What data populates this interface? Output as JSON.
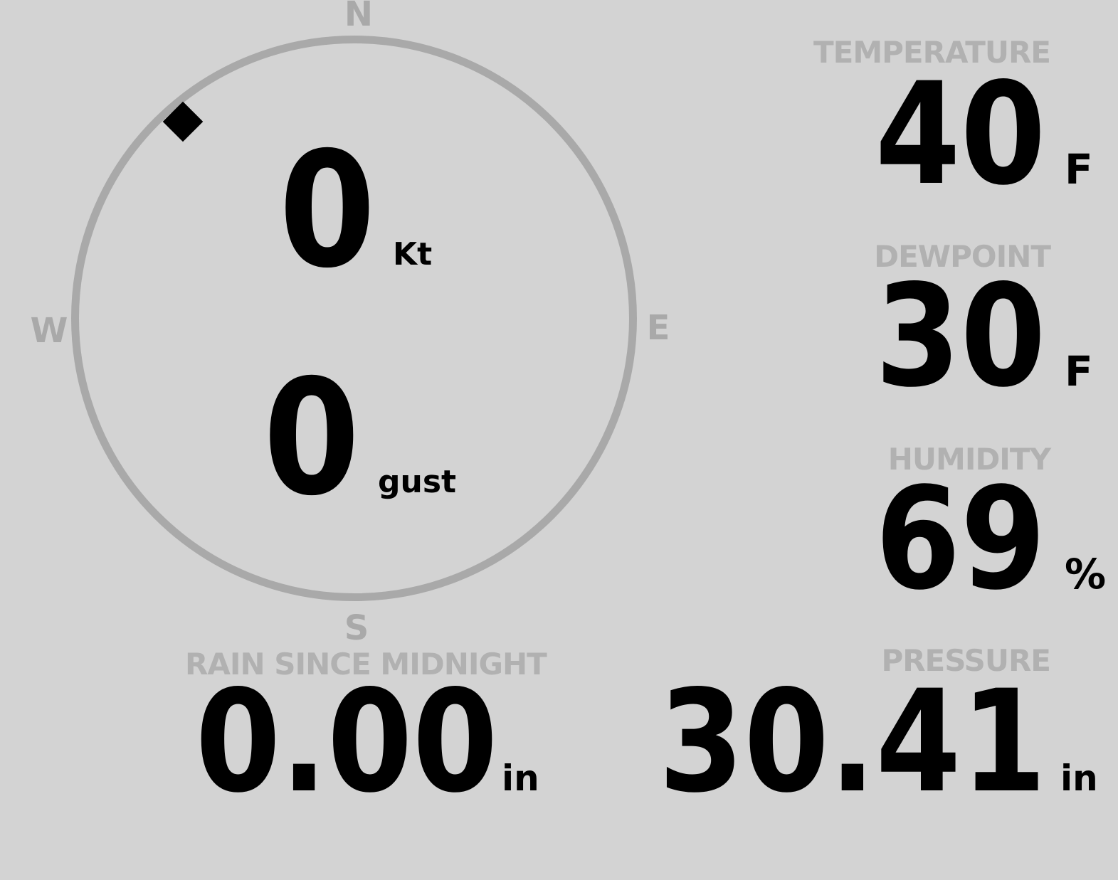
{
  "colors": {
    "background": "#d3d3d3",
    "dial": "#a9a9a9",
    "label": "#b1b1b1",
    "value": "#000000",
    "marker": "#000000"
  },
  "wind": {
    "speed": "0",
    "speed_unit": "Kt",
    "gust": "0",
    "gust_unit": "gust",
    "direction_deg": 319,
    "cardinals": {
      "n": "N",
      "e": "E",
      "s": "S",
      "w": "W"
    }
  },
  "metrics": {
    "temperature": {
      "label": "TEMPERATURE",
      "value": "40",
      "unit": "F"
    },
    "dewpoint": {
      "label": "DEWPOINT",
      "value": "30",
      "unit": "F"
    },
    "humidity": {
      "label": "HUMIDITY",
      "value": "69",
      "unit": "%"
    },
    "rain": {
      "label": "RAIN SINCE MIDNIGHT",
      "value": "0.00",
      "unit": "in"
    },
    "pressure": {
      "label": "PRESSURE",
      "value": "30.41",
      "unit": "in"
    }
  }
}
